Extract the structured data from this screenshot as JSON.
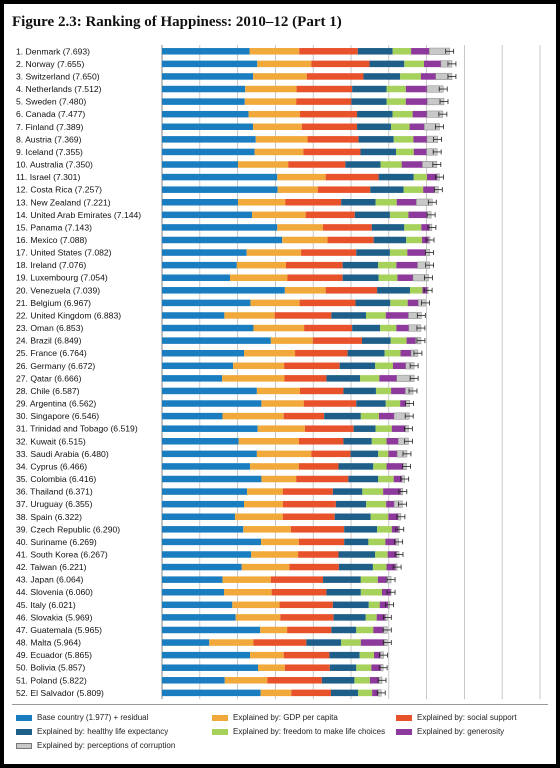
{
  "title": "Figure 2.3: Ranking of Happiness: 2010–12 (Part 1)",
  "chart_data": {
    "type": "bar",
    "orientation": "horizontal",
    "stacked": true,
    "xlim": [
      0,
      10
    ],
    "xticks": [
      0,
      1,
      2,
      3,
      4,
      5,
      6,
      7,
      8,
      9,
      10
    ],
    "grid": true,
    "legend_position": "bottom",
    "series": [
      {
        "name": "Base country (1.977) + residual",
        "color": "#1a7dc0"
      },
      {
        "name": "Explained by: GDP per capita",
        "color": "#f2a93b"
      },
      {
        "name": "Explained by: social support",
        "color": "#e8522a"
      },
      {
        "name": "Explained by: healthy life expectancy",
        "color": "#1e5f8a"
      },
      {
        "name": "Explained by: freedom to make life choices",
        "color": "#a6d15a"
      },
      {
        "name": "Explained by: generosity",
        "color": "#8e3a9c"
      },
      {
        "name": "Explained by: perceptions of corruption",
        "color": "#c8c8c8"
      }
    ],
    "rows": [
      {
        "label": "1. Denmark (7.693)",
        "values": [
          2.32,
          1.31,
          1.55,
          0.92,
          0.49,
          0.48,
          0.54
        ]
      },
      {
        "label": "2. Norway (7.655)",
        "values": [
          2.52,
          1.43,
          1.54,
          0.92,
          0.52,
          0.45,
          0.29
        ]
      },
      {
        "label": "3. Switzerland (7.650)",
        "values": [
          2.41,
          1.42,
          1.5,
          0.97,
          0.55,
          0.39,
          0.43
        ]
      },
      {
        "label": "4. Netherlands (7.512)",
        "values": [
          2.2,
          1.36,
          1.47,
          0.91,
          0.51,
          0.56,
          0.43
        ]
      },
      {
        "label": "5. Sweden (7.480)",
        "values": [
          2.19,
          1.36,
          1.46,
          0.93,
          0.51,
          0.57,
          0.44
        ]
      },
      {
        "label": "6. Canada (7.477)",
        "values": [
          2.29,
          1.36,
          1.51,
          0.94,
          0.53,
          0.38,
          0.42
        ]
      },
      {
        "label": "7. Finland (7.389)",
        "values": [
          2.41,
          1.29,
          1.46,
          0.9,
          0.49,
          0.39,
          0.4
        ]
      },
      {
        "label": "8. Austria (7.369)",
        "values": [
          2.48,
          1.37,
          1.35,
          0.93,
          0.52,
          0.36,
          0.28
        ]
      },
      {
        "label": "9. Iceland (7.355)",
        "values": [
          2.45,
          1.29,
          1.51,
          0.94,
          0.47,
          0.34,
          0.28
        ]
      },
      {
        "label": "10. Australia (7.350)",
        "values": [
          2.01,
          1.33,
          1.51,
          0.93,
          0.56,
          0.55,
          0.38
        ]
      },
      {
        "label": "11. Israel (7.301)",
        "values": [
          3.05,
          1.28,
          1.4,
          0.93,
          0.35,
          0.27,
          0.06
        ]
      },
      {
        "label": "12. Costa Rica (7.257)",
        "values": [
          3.06,
          1.06,
          1.39,
          0.88,
          0.52,
          0.3,
          0.1
        ]
      },
      {
        "label": "13. New Zealand (7.221)",
        "values": [
          2.01,
          1.25,
          1.48,
          0.91,
          0.56,
          0.52,
          0.42
        ]
      },
      {
        "label": "14. United Arab Emirates (7.144)",
        "values": [
          2.38,
          1.42,
          1.3,
          0.93,
          0.49,
          0.49,
          0.11
        ]
      },
      {
        "label": "15. Panama (7.143)",
        "values": [
          3.05,
          1.21,
          1.29,
          0.86,
          0.45,
          0.22,
          0.06
        ]
      },
      {
        "label": "16. Mexico (7.088)",
        "values": [
          3.18,
          1.2,
          1.22,
          0.86,
          0.42,
          0.17,
          0.04
        ]
      },
      {
        "label": "17. United States (7.082)",
        "values": [
          2.24,
          1.44,
          1.46,
          0.89,
          0.46,
          0.48,
          0.11
        ]
      },
      {
        "label": "18. Ireland (7.076)",
        "values": [
          1.98,
          1.3,
          1.5,
          0.94,
          0.48,
          0.56,
          0.32
        ]
      },
      {
        "label": "19. Luxembourg (7.054)",
        "values": [
          1.8,
          1.52,
          1.46,
          0.95,
          0.5,
          0.41,
          0.41
        ]
      },
      {
        "label": "20. Venezuela (7.039)",
        "values": [
          3.25,
          1.08,
          1.36,
          0.87,
          0.33,
          0.13,
          0.02
        ]
      },
      {
        "label": "21. Belgium (6.967)",
        "values": [
          2.34,
          1.3,
          1.48,
          0.92,
          0.46,
          0.28,
          0.19
        ]
      },
      {
        "label": "22. United Kingdom (6.883)",
        "values": [
          1.65,
          1.33,
          1.5,
          0.92,
          0.52,
          0.6,
          0.34
        ]
      },
      {
        "label": "23. Oman (6.853)",
        "values": [
          2.42,
          1.34,
          1.27,
          0.74,
          0.43,
          0.33,
          0.32
        ]
      },
      {
        "label": "24. Brazil (6.849)",
        "values": [
          2.88,
          1.11,
          1.3,
          0.76,
          0.42,
          0.24,
          0.14
        ]
      },
      {
        "label": "25. France (6.764)",
        "values": [
          2.17,
          1.35,
          1.39,
          0.98,
          0.42,
          0.28,
          0.18
        ]
      },
      {
        "label": "26. Germany (6.672)",
        "values": [
          1.88,
          1.35,
          1.47,
          0.94,
          0.47,
          0.34,
          0.22
        ]
      },
      {
        "label": "27. Qatar (6.666)",
        "values": [
          1.59,
          1.65,
          1.11,
          0.89,
          0.51,
          0.46,
          0.46
        ]
      },
      {
        "label": "28. Chile (6.587)",
        "values": [
          2.51,
          1.14,
          1.15,
          0.86,
          0.4,
          0.38,
          0.2
        ]
      },
      {
        "label": "29. Argentina (6.562)",
        "values": [
          2.63,
          1.12,
          1.39,
          0.78,
          0.38,
          0.15,
          0.1
        ]
      },
      {
        "label": "30. Singapore (6.546)",
        "values": [
          1.6,
          1.62,
          1.07,
          0.97,
          0.48,
          0.4,
          0.4
        ]
      },
      {
        "label": "31. Trinidad and Tobago (6.519)",
        "values": [
          2.53,
          1.25,
          1.29,
          0.58,
          0.43,
          0.36,
          0.08
        ]
      },
      {
        "label": "32. Kuwait (6.515)",
        "values": [
          2.03,
          1.59,
          1.18,
          0.75,
          0.39,
          0.31,
          0.27
        ]
      },
      {
        "label": "33. Saudi Arabia (6.480)",
        "values": [
          2.51,
          1.44,
          1.04,
          0.73,
          0.27,
          0.23,
          0.26
        ]
      },
      {
        "label": "34. Cyprus (6.466)",
        "values": [
          2.33,
          1.29,
          1.05,
          0.92,
          0.35,
          0.44,
          0.09
        ]
      },
      {
        "label": "35. Colombia (6.416)",
        "values": [
          2.63,
          0.92,
          1.38,
          0.79,
          0.41,
          0.22,
          0.07
        ]
      },
      {
        "label": "36. Thailand (6.371)",
        "values": [
          2.25,
          0.95,
          1.32,
          0.78,
          0.55,
          0.47,
          0.05
        ]
      },
      {
        "label": "37. Uruguay (6.355)",
        "values": [
          2.17,
          1.03,
          1.4,
          0.8,
          0.53,
          0.21,
          0.22
        ]
      },
      {
        "label": "38. Spain (6.322)",
        "values": [
          1.93,
          1.27,
          1.37,
          0.95,
          0.47,
          0.26,
          0.07
        ]
      },
      {
        "label": "39. Czech Republic (6.290)",
        "values": [
          2.15,
          1.26,
          1.41,
          0.87,
          0.39,
          0.18,
          0.03
        ]
      },
      {
        "label": "40. Suriname (6.269)",
        "values": [
          2.62,
          1.0,
          1.2,
          0.64,
          0.45,
          0.28,
          0.07
        ]
      },
      {
        "label": "41. South Korea (6.267)",
        "values": [
          2.36,
          1.24,
          1.07,
          0.97,
          0.33,
          0.24,
          0.06
        ]
      },
      {
        "label": "42. Taiwan (6.221)",
        "values": [
          2.11,
          1.26,
          1.31,
          0.9,
          0.36,
          0.24,
          0.04
        ]
      },
      {
        "label": "43. Japan (6.064)",
        "values": [
          1.6,
          1.28,
          1.38,
          1.0,
          0.45,
          0.23,
          0.12
        ]
      },
      {
        "label": "44. Slovenia (6.060)",
        "values": [
          1.64,
          1.26,
          1.45,
          0.91,
          0.56,
          0.23,
          0.01
        ]
      },
      {
        "label": "45. Italy (6.021)",
        "values": [
          1.86,
          1.25,
          1.41,
          0.95,
          0.29,
          0.22,
          0.04
        ]
      },
      {
        "label": "46. Slovakia (5.969)",
        "values": [
          1.95,
          1.18,
          1.41,
          0.85,
          0.29,
          0.23,
          0.05
        ]
      },
      {
        "label": "47. Guatemala (5.965)",
        "values": [
          2.6,
          0.71,
          1.17,
          0.66,
          0.45,
          0.26,
          0.11
        ]
      },
      {
        "label": "48. Malta (5.964)",
        "values": [
          1.25,
          1.17,
          1.4,
          0.92,
          0.52,
          0.62,
          0.08
        ]
      },
      {
        "label": "49. Ecuador (5.865)",
        "values": [
          2.33,
          0.89,
          1.21,
          0.8,
          0.38,
          0.17,
          0.08
        ]
      },
      {
        "label": "50. Bolivia (5.857)",
        "values": [
          2.54,
          0.71,
          1.19,
          0.7,
          0.4,
          0.25,
          0.06
        ]
      },
      {
        "label": "51. Poland (5.822)",
        "values": [
          1.66,
          1.13,
          1.44,
          0.86,
          0.41,
          0.24,
          0.08
        ]
      },
      {
        "label": "52. El Salvador (5.809)",
        "values": [
          2.61,
          0.81,
          1.05,
          0.72,
          0.37,
          0.16,
          0.08
        ]
      }
    ]
  }
}
